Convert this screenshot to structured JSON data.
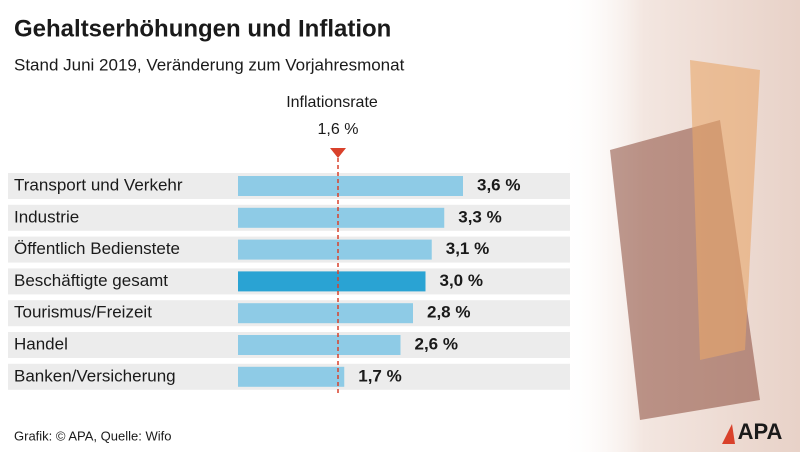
{
  "chart_data": {
    "type": "bar",
    "orientation": "horizontal",
    "title": "Gehaltserhöhungen und Inflation",
    "subtitle": "Stand Juni 2019, Veränderung zum Vorjahresmonat",
    "categories": [
      "Transport und Verkehr",
      "Industrie",
      "Öffentlich Bedienstete",
      "Beschäftigte gesamt",
      "Tourismus/Freizeit",
      "Handel",
      "Banken/Versicherung"
    ],
    "values": [
      3.6,
      3.3,
      3.1,
      3.0,
      2.8,
      2.6,
      1.7
    ],
    "value_labels": [
      "3,6 %",
      "3,3 %",
      "3,1 %",
      "3,0 %",
      "2,8 %",
      "2,6 %",
      "1,7 %"
    ],
    "colors": [
      "#8ecbe6",
      "#8ecbe6",
      "#8ecbe6",
      "#2aa3d3",
      "#8ecbe6",
      "#8ecbe6",
      "#8ecbe6"
    ],
    "reference_line": {
      "label": "Inflationsrate",
      "value": 1.6,
      "value_label": "1,6 %",
      "color": "#d9412b"
    },
    "source": "Grafik: © APA, Quelle: Wifo",
    "logo": "APA"
  }
}
